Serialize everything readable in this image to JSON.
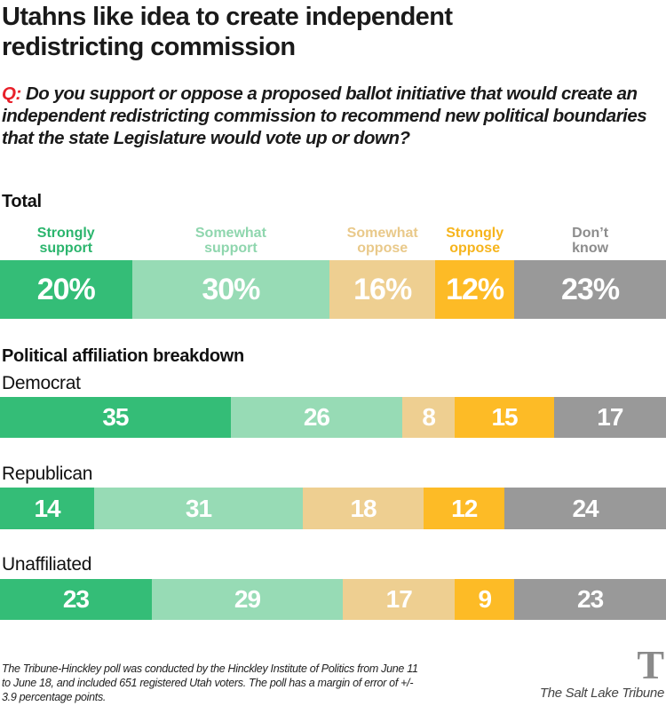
{
  "header": {
    "title": "Utahns like idea to create independent redistricting commission",
    "question_prefix": "Q:",
    "question": " Do you support or oppose a proposed ballot initiative that would create an independent redistricting commission to recommend new political boundaries that the state Legislature would vote up or down?"
  },
  "total_heading": "Total",
  "breakdown_heading": "Political affiliation breakdown",
  "chart_data": {
    "type": "bar",
    "orientation": "horizontal-stacked",
    "title": "Utahns like idea to create independent redistricting commission",
    "categories": [
      "Strongly support",
      "Somewhat support",
      "Somewhat oppose",
      "Strongly oppose",
      "Don't know"
    ],
    "category_labels": [
      "Strongly\nsupport",
      "Somewhat\nsupport",
      "Somewhat\noppose",
      "Strongly\noppose",
      "Don’t\nknow"
    ],
    "colors": [
      "#34bd77",
      "#97dbb5",
      "#eecf91",
      "#fdbb26",
      "#999999"
    ],
    "label_colors": [
      "#2bb56d",
      "#8fd6ae",
      "#e9c98a",
      "#f6b41c",
      "#8c8c8c"
    ],
    "total": {
      "name": "Total",
      "values": [
        20,
        30,
        16,
        12,
        23
      ],
      "labels": [
        "20%",
        "30%",
        "16%",
        "12%",
        "23%"
      ]
    },
    "series": [
      {
        "name": "Democrat",
        "values": [
          35,
          26,
          8,
          15,
          17
        ]
      },
      {
        "name": "Republican",
        "values": [
          14,
          31,
          18,
          12,
          24
        ]
      },
      {
        "name": "Unaffiliated",
        "values": [
          23,
          29,
          17,
          9,
          23
        ]
      }
    ],
    "unit": "percent"
  },
  "footnote": "The Tribune-Hinckley poll was conducted by the Hinckley Institute of Politics from June 11 to June 18, and included 651 registered Utah voters. The poll has a margin of error of +/- 3.9 percentage points.",
  "logo": {
    "glyph": "T",
    "name": "The Salt Lake Tribune",
    "icon": "tribune-t-logo-icon"
  }
}
